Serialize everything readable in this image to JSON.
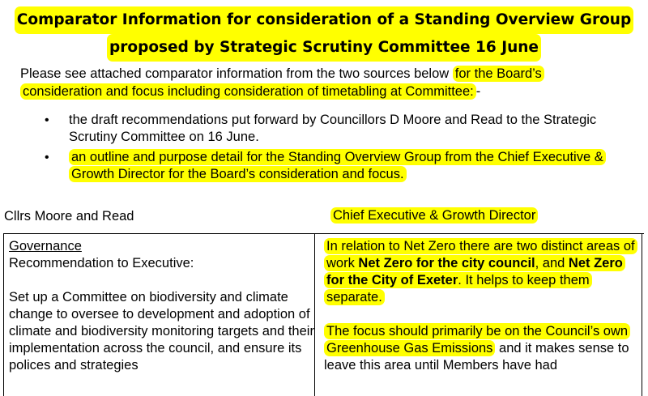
{
  "title": {
    "line1": "Comparator Information for consideration of a Standing Overview Group",
    "line2": "proposed by Strategic Scrutiny Committee 16 June"
  },
  "intro": {
    "plain": "Please see attached comparator information from the two sources below ",
    "highlighted": "for the Board’s consideration and focus including consideration of timetabling at Committee:",
    "tail": "-"
  },
  "bullets": [
    "the draft recommendations put forward by Councillors D Moore and Read to the Strategic Scrutiny Committee on 16 June.",
    "an outline and purpose detail for the Standing Overview Group from the Chief Executive & Growth Director for the Board’s consideration and focus."
  ],
  "columns": {
    "left_heading": "Cllrs Moore and Read",
    "right_heading": "Chief Executive & Growth Director"
  },
  "left_cell": {
    "heading": "Governance",
    "subheading": "Recommendation to Executive:",
    "paragraph": "Set up a Committee on biodiversity and climate change to oversee to development and adoption of climate and biodiversity monitoring targets and their implementation across the council, and ensure its polices and strategies"
  },
  "right_cell": {
    "p1_a": "In relation to Net Zero there are two distinct areas of work ",
    "p1_b": "Net Zero for the city council",
    "p1_c": ", and ",
    "p1_d": "Net Zero for the City of Exeter",
    "p1_e": ". It helps to keep them separate.",
    "p2_highlighted": "The focus should primarily be on the Council’s own Greenhouse Gas Emissions",
    "p2_plain": " and it makes sense to leave this area until Members have had"
  }
}
